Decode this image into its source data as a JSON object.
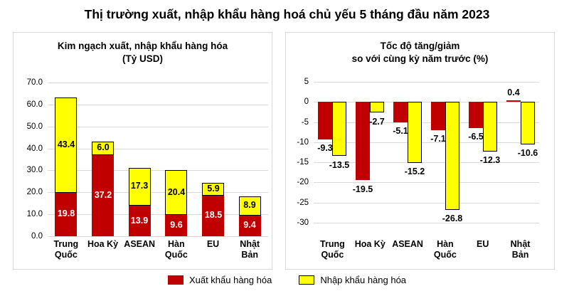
{
  "title": "Thị trường xuất, nhập khẩu hàng hoá chủ yếu 5 tháng đầu năm 2023",
  "colors": {
    "export": "#C00000",
    "import": "#FFFF00",
    "gridline": "#D9D9D9",
    "panel_border": "#D9D9D9",
    "label_on_export": "#FFFFFF",
    "label_on_import": "#000000"
  },
  "legend": {
    "items": [
      {
        "label": "Xuất khẩu hàng hóa",
        "color": "#C00000",
        "border": "none"
      },
      {
        "label": "Nhập khẩu hàng hóa",
        "color": "#FFFF00",
        "border": "#000000"
      }
    ]
  },
  "chart_data": [
    {
      "type": "bar",
      "subtype": "stacked",
      "title": "Kim ngạch xuất, nhập khẩu hàng hóa\n(Tỷ USD)",
      "categories": [
        "Trung\nQuốc",
        "Hoa Kỳ",
        "ASEAN",
        "Hàn\nQuốc",
        "EU",
        "Nhật\nBản"
      ],
      "series": [
        {
          "name": "Xuất khẩu hàng hóa",
          "color": "#C00000",
          "border": "none",
          "label_color": "#FFFFFF",
          "values": [
            19.8,
            37.2,
            13.9,
            9.6,
            18.5,
            9.4
          ]
        },
        {
          "name": "Nhập khẩu hàng hóa",
          "color": "#FFFF00",
          "border": "#000000",
          "label_color": "#000000",
          "values": [
            43.4,
            6.0,
            17.3,
            20.4,
            5.9,
            8.9
          ]
        }
      ],
      "ylim": [
        0,
        70
      ],
      "ystep": 10,
      "ytick_labels": [
        "0.0",
        "10.0",
        "20.0",
        "30.0",
        "40.0",
        "50.0",
        "60.0",
        "70.0"
      ],
      "grid": true,
      "legend_position": "bottom"
    },
    {
      "type": "bar",
      "subtype": "grouped",
      "title": "Tốc độ tăng/giảm\nso với cùng kỳ năm trước (%)",
      "categories": [
        "Trung\nQuốc",
        "Hoa Kỳ",
        "ASEAN",
        "Hàn\nQuốc",
        "EU",
        "Nhật\nBản"
      ],
      "series": [
        {
          "name": "Xuất khẩu hàng hóa",
          "color": "#C00000",
          "border": "none",
          "label_color": "#000000",
          "values": [
            -9.3,
            -19.5,
            -5.1,
            -7.1,
            -6.5,
            0.4
          ]
        },
        {
          "name": "Nhập khẩu hàng hóa",
          "color": "#FFFF00",
          "border": "#000000",
          "label_color": "#000000",
          "values": [
            -13.5,
            -2.7,
            -15.2,
            -26.8,
            -12.3,
            -10.6
          ]
        }
      ],
      "ylim": [
        -30,
        5
      ],
      "ystep": 5,
      "ytick_labels": [
        "-30",
        "-25",
        "-20",
        "-15",
        "-10",
        "-5",
        "0",
        "5"
      ],
      "grid": true,
      "legend_position": "bottom"
    }
  ]
}
